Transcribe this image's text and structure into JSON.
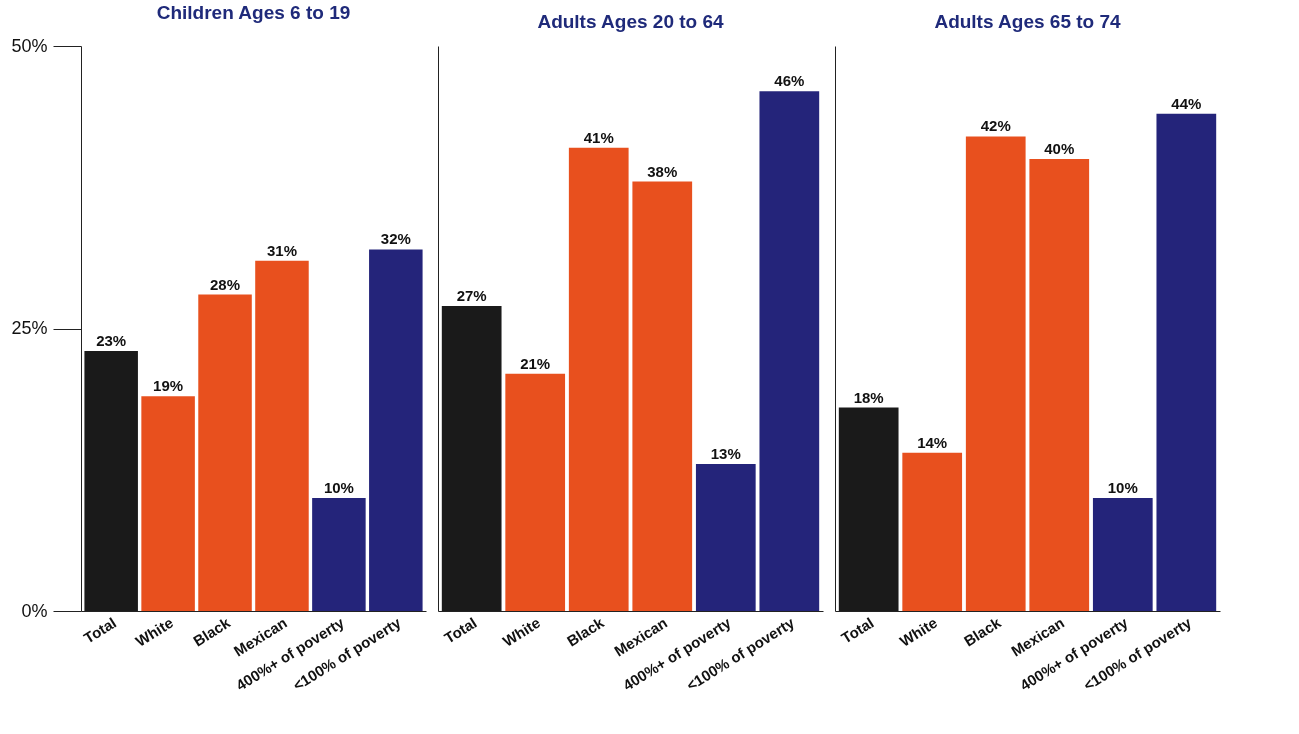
{
  "chart_data": [
    {
      "type": "bar",
      "title": "Children Ages 6 to 19",
      "categories": [
        "Total",
        "White",
        "Black",
        "Mexican",
        "400%+ of poverty",
        "<100% of poverty"
      ],
      "values": [
        23,
        19,
        28,
        31,
        10,
        32
      ],
      "value_labels": [
        "23%",
        "19%",
        "28%",
        "31%",
        "10%",
        "32%"
      ],
      "colors": [
        "#1a1a1a",
        "#e8501e",
        "#e8501e",
        "#e8501e",
        "#24247a",
        "#24247a"
      ],
      "ylim": [
        0,
        50
      ],
      "yticks": [
        {
          "value": 0,
          "label": "0%"
        },
        {
          "value": 25,
          "label": "25%"
        },
        {
          "value": 50,
          "label": "50%"
        }
      ],
      "grid": false
    },
    {
      "type": "bar",
      "title": "Adults Ages 20 to 64",
      "categories": [
        "Total",
        "White",
        "Black",
        "Mexican",
        "400%+ of poverty",
        "<100% of poverty"
      ],
      "values": [
        27,
        21,
        41,
        38,
        13,
        46
      ],
      "value_labels": [
        "27%",
        "21%",
        "41%",
        "38%",
        "13%",
        "46%"
      ],
      "colors": [
        "#1a1a1a",
        "#e8501e",
        "#e8501e",
        "#e8501e",
        "#24247a",
        "#24247a"
      ],
      "ylim": [
        0,
        50
      ],
      "grid": false,
      "tick_labels": "x"
    },
    {
      "type": "bar",
      "title": "Adults Ages 65 to 74",
      "categories": [
        "Total",
        "White",
        "Black",
        "Mexican",
        "400%+ of poverty",
        "<100% of poverty"
      ],
      "values": [
        18,
        14,
        42,
        40,
        10,
        44
      ],
      "value_labels": [
        "18%",
        "14%",
        "42%",
        "40%",
        "10%",
        "44%"
      ],
      "colors": [
        "#1a1a1a",
        "#e8501e",
        "#e8501e",
        "#e8501e",
        "#24247a",
        "#24247a"
      ],
      "ylim": [
        0,
        50
      ],
      "grid": false,
      "tick_labels": "x"
    }
  ]
}
